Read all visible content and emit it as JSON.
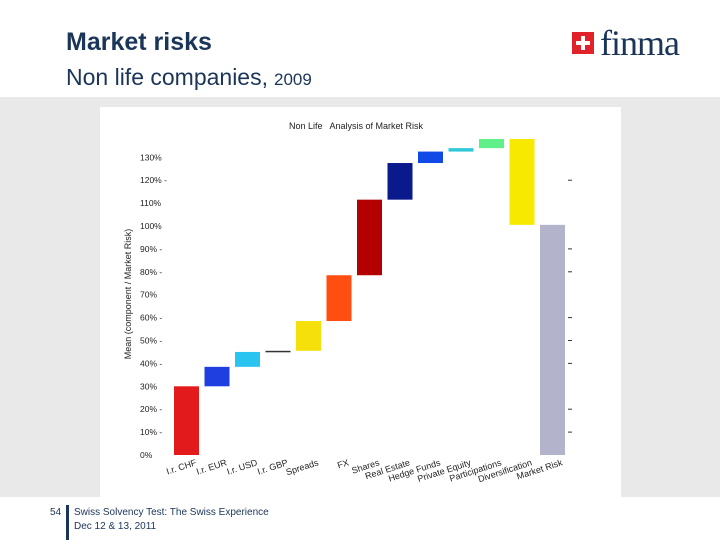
{
  "header": {
    "title": "Market risks",
    "subtitle": "Non life companies,",
    "subtitle_year": "2009",
    "logo_text": "finma"
  },
  "footer": {
    "page_number": "54",
    "line1": "Swiss Solvency Test: The Swiss Experience",
    "line2": "Dec 12 & 13, 2011"
  },
  "chart_data": {
    "type": "bar",
    "subtype": "waterfall",
    "title": "Non Life   Analysis of Market Risk",
    "xlabel": "",
    "ylabel": "Mean (component / Market Risk)",
    "ylim": [
      0,
      130
    ],
    "y_ticks": [
      {
        "value": 0,
        "label": "0%"
      },
      {
        "value": 10,
        "label": "10% -"
      },
      {
        "value": 20,
        "label": "20% -"
      },
      {
        "value": 30,
        "label": "30%"
      },
      {
        "value": 40,
        "label": "40% -"
      },
      {
        "value": 50,
        "label": "50% -"
      },
      {
        "value": 60,
        "label": "60% -"
      },
      {
        "value": 70,
        "label": "70%"
      },
      {
        "value": 80,
        "label": "80% -"
      },
      {
        "value": 90,
        "label": "90% -"
      },
      {
        "value": 100,
        "label": "100%"
      },
      {
        "value": 110,
        "label": "110%"
      },
      {
        "value": 120,
        "label": "120% -"
      },
      {
        "value": 130,
        "label": "130%"
      }
    ],
    "right_ticks": [
      10,
      20,
      40,
      50,
      60,
      80,
      90,
      120
    ],
    "categories": [
      "I.r. CHF",
      "I.r. EUR",
      "I.r. USD",
      "I.r. GBP",
      "Spreads",
      "FX",
      "Shares",
      "Real Estate",
      "Hedge Funds",
      "Private Equity",
      "Participations",
      "Diversification",
      "Market Risk"
    ],
    "bars": [
      {
        "label": "I.r. CHF",
        "start": 0,
        "end": 30,
        "color": "#e31a1c"
      },
      {
        "label": "I.r. EUR",
        "start": 30,
        "end": 38.5,
        "color": "#1f3fe0"
      },
      {
        "label": "I.r. USD",
        "start": 38.5,
        "end": 45,
        "color": "#29c5f0"
      },
      {
        "label": "I.r. GBP",
        "start": 45,
        "end": 45.5,
        "color": "#333333"
      },
      {
        "label": "Spreads",
        "start": 45.5,
        "end": 58.5,
        "color": "#f5e00c"
      },
      {
        "label": "FX",
        "start": 58.5,
        "end": 78.5,
        "color": "#ff4e12"
      },
      {
        "label": "Shares",
        "start": 78.5,
        "end": 111.5,
        "color": "#b30000"
      },
      {
        "label": "Real Estate",
        "start": 111.5,
        "end": 127.5,
        "color": "#0a1a8c"
      },
      {
        "label": "Hedge Funds",
        "start": 127.5,
        "end": 132.5,
        "color": "#1149e6"
      },
      {
        "label": "Private Equity",
        "start": 132.5,
        "end": 134,
        "color": "#2ec8d8"
      },
      {
        "label": "Participations",
        "start": 134,
        "end": 138,
        "color": "#5ff08a"
      },
      {
        "label": "Diversification",
        "start": 100.5,
        "end": 138,
        "color": "#f7ea00"
      },
      {
        "label": "Market Risk",
        "start": 0,
        "end": 100.5,
        "color": "#b3b3cc"
      }
    ]
  }
}
